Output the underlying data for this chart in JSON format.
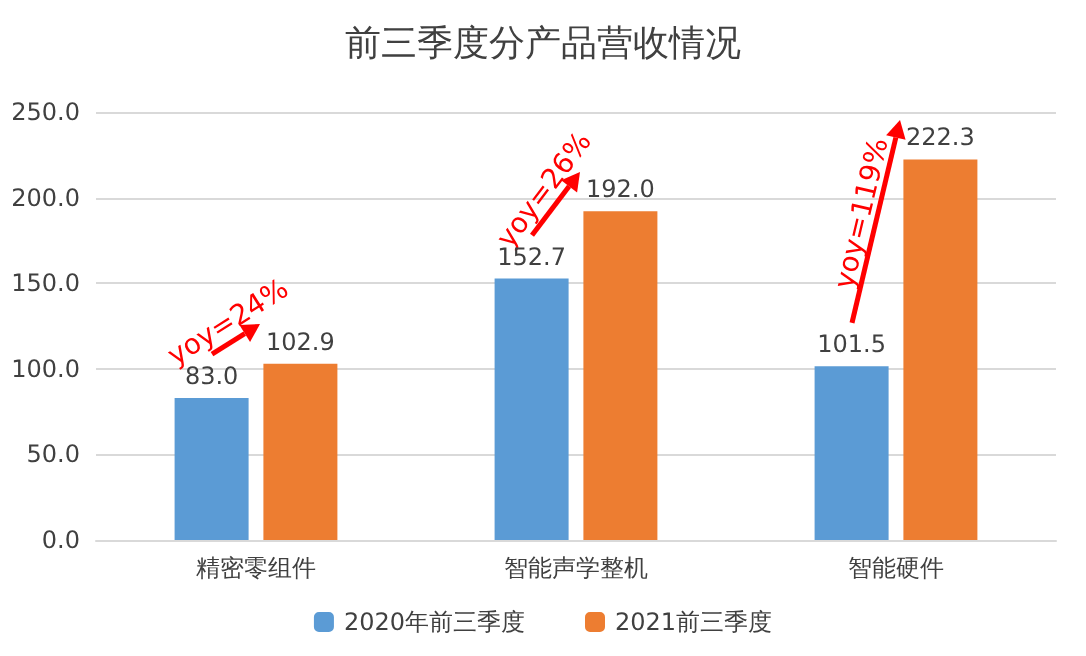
{
  "chart_data": {
    "type": "bar",
    "title": "前三季度分产品营收情况",
    "categories": [
      "精密零组件",
      "智能声学整机",
      "智能硬件"
    ],
    "series": [
      {
        "name": "2020年前三季度",
        "color": "#5b9bd5",
        "values": [
          83.0,
          152.7,
          101.5
        ],
        "value_labels": [
          "83.0",
          "152.7",
          "101.5"
        ]
      },
      {
        "name": "2021前三季度",
        "color": "#ed7d31",
        "values": [
          102.9,
          192.0,
          222.3
        ],
        "value_labels": [
          "102.9",
          "192.0",
          "222.3"
        ]
      }
    ],
    "ylim": [
      0,
      250
    ],
    "yticks": [
      {
        "value": 0,
        "label": "0.0"
      },
      {
        "value": 50,
        "label": "50.0"
      },
      {
        "value": 100,
        "label": "100.0"
      },
      {
        "value": 150,
        "label": "150.0"
      },
      {
        "value": 200,
        "label": "200.0"
      },
      {
        "value": 250,
        "label": "250.0"
      }
    ],
    "grid": "y",
    "legend": "bottom",
    "annotations": [
      "yoy=24%",
      "yoy=26%",
      "yoy=119%"
    ]
  }
}
